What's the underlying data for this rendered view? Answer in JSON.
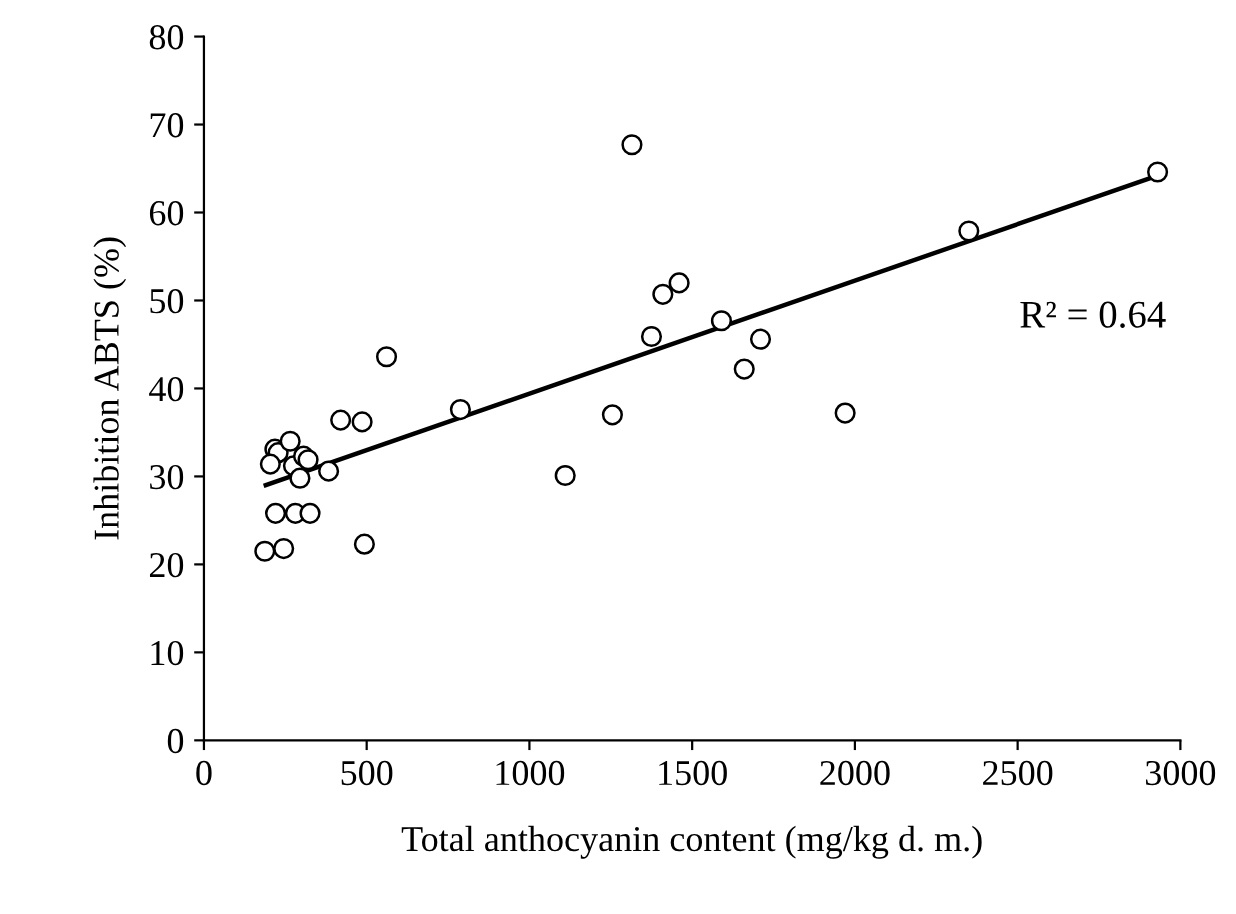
{
  "chart_data": {
    "type": "scatter",
    "xlabel": "Total anthocyanin content (mg/kg d. m.)",
    "ylabel": "Inhibition ABTS (%)",
    "xlim": [
      0,
      3000
    ],
    "xticks": [
      0,
      500,
      1000,
      1500,
      2000,
      2500,
      3000
    ],
    "ylim": [
      0,
      80
    ],
    "yticks": [
      0,
      10,
      20,
      30,
      40,
      50,
      60,
      70,
      80
    ],
    "grid": false,
    "legend": false,
    "marker": "circle",
    "annotations": [
      "R² = 0.64"
    ],
    "series": [
      {
        "color": "#000000",
        "x": [
          218,
          228,
          265,
          204,
          275,
          306,
          320,
          295,
          383,
          220,
          281,
          326,
          187,
          245,
          493,
          420,
          486,
          788,
          1110,
          561,
          1315,
          2930,
          2350,
          1460,
          1410,
          1590,
          1710,
          1375,
          1660,
          1255,
          1970
        ],
        "values": [
          33.1,
          32.7,
          34.0,
          31.4,
          31.2,
          32.3,
          31.9,
          29.8,
          30.6,
          25.8,
          25.8,
          25.8,
          21.5,
          21.8,
          22.3,
          36.4,
          36.2,
          37.6,
          30.1,
          43.6,
          67.7,
          64.6,
          57.9,
          52.0,
          50.7,
          47.7,
          45.6,
          45.9,
          42.2,
          37.0,
          37.2
        ]
      },
      {
        "type": "line",
        "color": "#000000",
        "x": [
          190,
          2930
        ],
        "values": [
          29.0,
          64.2
        ],
        "marker": "none",
        "line_style": "solid"
      }
    ]
  }
}
